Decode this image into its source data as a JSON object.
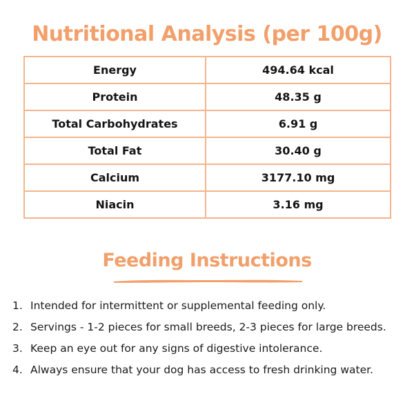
{
  "nutrition": {
    "title": "Nutritional Analysis (per 100g)",
    "rows": [
      {
        "label": "Energy",
        "value": "494.64 kcal"
      },
      {
        "label": "Protein",
        "value": "48.35 g"
      },
      {
        "label": "Total Carbohydrates",
        "value": "6.91 g"
      },
      {
        "label": "Total Fat",
        "value": "30.40 g"
      },
      {
        "label": "Calcium",
        "value": "3177.10 mg"
      },
      {
        "label": "Niacin",
        "value": "3.16 mg"
      }
    ]
  },
  "feeding": {
    "title": "Feeding Instructions",
    "items": [
      {
        "num": "1.",
        "text": "Intended for intermittent or supplemental feeding only."
      },
      {
        "num": "2.",
        "text": "Servings - 1-2 pieces for small breeds, 2-3 pieces for large breeds."
      },
      {
        "num": "3.",
        "text": "Keep an eye out for any signs of digestive intolerance."
      },
      {
        "num": "4.",
        "text": "Always ensure that your dog has access to fresh drinking water."
      }
    ]
  },
  "colors": {
    "accent": "#f2a06b",
    "table_border": "#f4b38a",
    "text": "#141414"
  }
}
